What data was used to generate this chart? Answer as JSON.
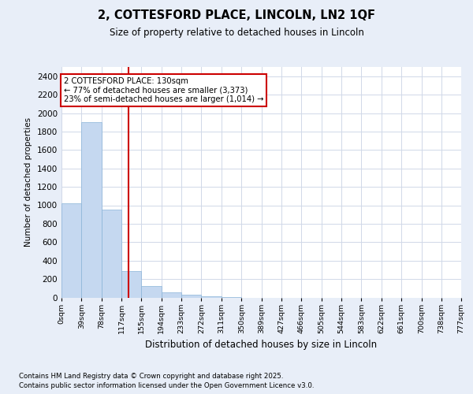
{
  "title": "2, COTTESFORD PLACE, LINCOLN, LN2 1QF",
  "subtitle": "Size of property relative to detached houses in Lincoln",
  "xlabel": "Distribution of detached houses by size in Lincoln",
  "ylabel": "Number of detached properties",
  "bar_color": "#c5d8f0",
  "bar_edgecolor": "#8ab4d8",
  "annotation_box_color": "#cc0000",
  "annotation_line1": "2 COTTESFORD PLACE: 130sqm",
  "annotation_line2": "← 77% of detached houses are smaller (3,373)",
  "annotation_line3": "23% of semi-detached houses are larger (1,014) →",
  "vline_x": 130,
  "vline_color": "#cc0000",
  "bins": [
    0,
    39,
    78,
    117,
    155,
    194,
    233,
    272,
    311,
    350,
    389,
    427,
    466,
    505,
    544,
    583,
    622,
    661,
    700,
    738,
    777
  ],
  "bin_labels": [
    "0sqm",
    "39sqm",
    "78sqm",
    "117sqm",
    "155sqm",
    "194sqm",
    "233sqm",
    "272sqm",
    "311sqm",
    "350sqm",
    "389sqm",
    "427sqm",
    "466sqm",
    "505sqm",
    "544sqm",
    "583sqm",
    "622sqm",
    "661sqm",
    "700sqm",
    "738sqm",
    "777sqm"
  ],
  "bar_heights": [
    1020,
    1900,
    950,
    290,
    120,
    55,
    30,
    15,
    5,
    0,
    0,
    0,
    0,
    0,
    0,
    0,
    0,
    0,
    0,
    0
  ],
  "ylim": [
    0,
    2500
  ],
  "yticks": [
    0,
    200,
    400,
    600,
    800,
    1000,
    1200,
    1400,
    1600,
    1800,
    2000,
    2200,
    2400
  ],
  "footer_line1": "Contains HM Land Registry data © Crown copyright and database right 2025.",
  "footer_line2": "Contains public sector information licensed under the Open Government Licence v3.0.",
  "bg_color": "#e8eef8",
  "plot_bg_color": "#ffffff",
  "grid_color": "#d0d8e8"
}
